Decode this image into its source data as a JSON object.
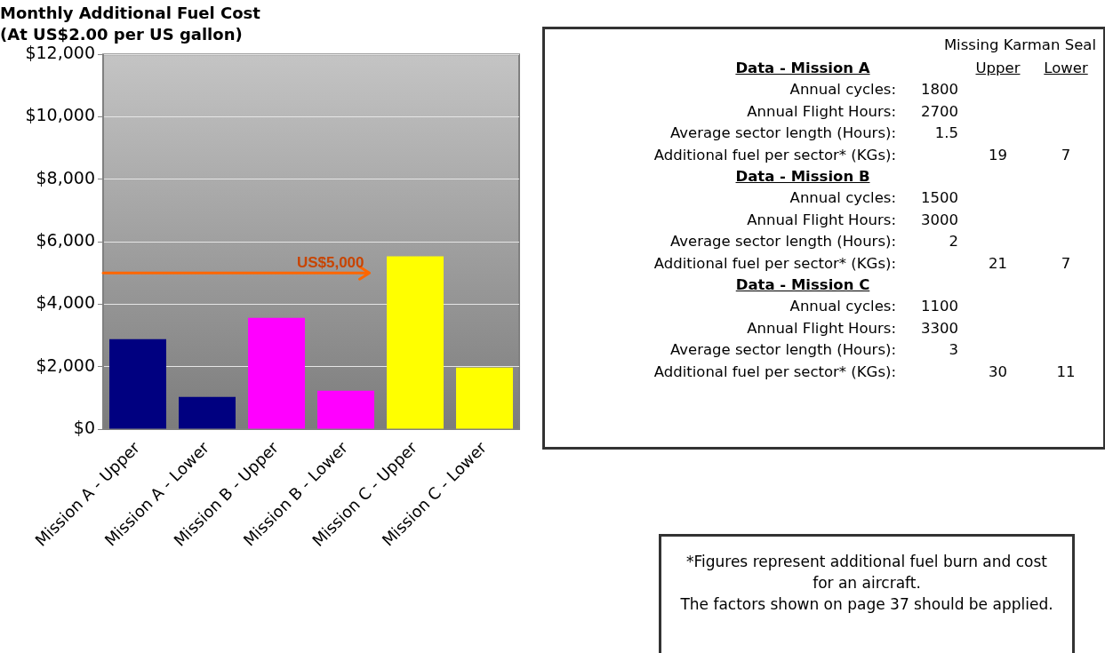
{
  "chart_data": [
    {
      "type": "bar",
      "title": "Monthly Additional Fuel Cost",
      "subtitle": "(At US$2.00 per US gallon)",
      "categories": [
        "Mission A - Upper",
        "Mission A - Lower",
        "Mission B - Upper",
        "Mission B - Lower",
        "Mission C - Upper",
        "Mission C - Lower"
      ],
      "values": [
        2880,
        1030,
        3560,
        1230,
        5530,
        1970
      ],
      "colors": [
        "#000080",
        "#000080",
        "#ff00ff",
        "#ff00ff",
        "#ffff00",
        "#ffff00"
      ],
      "ylim": [
        0,
        12000
      ],
      "yticks": [
        {
          "value": 0,
          "label": "$0"
        },
        {
          "value": 2000,
          "label": "$2,000"
        },
        {
          "value": 4000,
          "label": "$4,000"
        },
        {
          "value": 6000,
          "label": "$6,000"
        },
        {
          "value": 8000,
          "label": "$8,000"
        },
        {
          "value": 10000,
          "label": "$10,000"
        },
        {
          "value": 12000,
          "label": "$12,000"
        }
      ],
      "grid": "y",
      "legend": false,
      "ref_lines": [
        {
          "axis": "y",
          "value": 5000,
          "label": "US$5,000",
          "color": "#ff6600"
        }
      ]
    },
    {
      "type": "other",
      "title": "Missing Karman Seal",
      "categories": [
        null,
        "Upper",
        "Lower"
      ],
      "y_categories": [
        "Data - Mission A",
        "Annual cycles:",
        "Annual Flight Hours:",
        "Average sector length (Hours):",
        "Additional fuel per sector* (KGs):",
        "Data - Mission B",
        "Annual cycles:",
        "Annual Flight Hours:",
        "Average sector length (Hours):",
        "Additional fuel per sector* (KGs):",
        "Data - Mission C",
        "Annual cycles:",
        "Annual Flight Hours:",
        "Average sector length (Hours):",
        "Additional fuel per sector* (KGs):"
      ],
      "cell_labels": [
        [
          null,
          null,
          null
        ],
        [
          "1800",
          null,
          null
        ],
        [
          "2700",
          null,
          null
        ],
        [
          "1.5",
          null,
          null
        ],
        [
          null,
          "19",
          "7"
        ],
        [
          null,
          null,
          null
        ],
        [
          "1500",
          null,
          null
        ],
        [
          "3000",
          null,
          null
        ],
        [
          "2",
          null,
          null
        ],
        [
          null,
          "21",
          "7"
        ],
        [
          null,
          null,
          null
        ],
        [
          "1100",
          null,
          null
        ],
        [
          "3300",
          null,
          null
        ],
        [
          "3",
          null,
          null
        ],
        [
          null,
          "30",
          "11"
        ]
      ]
    },
    {
      "type": "other",
      "annotations": [
        "*Figures represent additional fuel burn and cost for an aircraft.",
        "The factors shown on page 37 should be applied."
      ]
    }
  ]
}
